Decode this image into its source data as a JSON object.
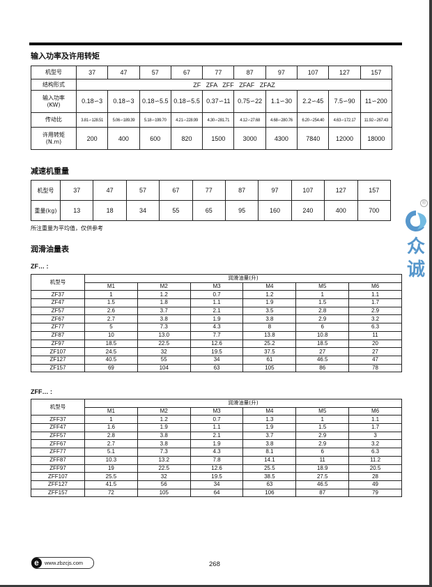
{
  "section1": {
    "title": "输入功率及许用转矩",
    "models_label": "机型号",
    "models": [
      "37",
      "47",
      "57",
      "67",
      "77",
      "87",
      "97",
      "107",
      "127",
      "157"
    ],
    "structure_label": "结构形式",
    "structure_value": "ZF   ZFA   ZFF   ZFAF   ZFAZ",
    "power_label": "输入功率\n(KW)",
    "power": [
      "0.18∽3",
      "0.18∽3",
      "0.18∽5.5",
      "0.18∽5.5",
      "0.37∽11",
      "0.75∽22",
      "1.1∽30",
      "2.2∽45",
      "7.5∽90",
      "11∽200"
    ],
    "ratio_label": "传动比",
    "ratio": [
      "3.81∽128.51",
      "5.06∽189.39",
      "5.18∽199.70",
      "4.21∽228.99",
      "4.30∽281.71",
      "4.12∽27.68",
      "4.68∽280.76",
      "6.20∽254.40",
      "4.63∽172.17",
      "11.92∽267.43"
    ],
    "torque_label": "许用转矩\n(N.m)",
    "torque": [
      "200",
      "400",
      "600",
      "820",
      "1500",
      "3000",
      "4300",
      "7840",
      "12000",
      "18000"
    ]
  },
  "section2": {
    "title": "减速机重量",
    "models_label": "机型号",
    "models": [
      "37",
      "47",
      "57",
      "67",
      "77",
      "87",
      "97",
      "107",
      "127",
      "157"
    ],
    "weight_label": "重量(kg)",
    "weights": [
      "13",
      "18",
      "34",
      "55",
      "65",
      "95",
      "160",
      "240",
      "400",
      "700"
    ],
    "note": "所注重量为平均值，仅供参考"
  },
  "section3": {
    "title": "润滑油量表",
    "tables": [
      {
        "label": "ZF…   :",
        "model_header": "机型号",
        "group_header": "润滑油量(升)",
        "columns": [
          "M1",
          "M2",
          "M3",
          "M4",
          "M5",
          "M6"
        ],
        "rows": [
          [
            "ZF37",
            "1",
            "1.2",
            "0.7",
            "1.2",
            "1",
            "1.1"
          ],
          [
            "ZF47",
            "1.5",
            "1.8",
            "1.1",
            "1.9",
            "1.5",
            "1.7"
          ],
          [
            "ZF57",
            "2.6",
            "3.7",
            "2.1",
            "3.5",
            "2.8",
            "2.9"
          ],
          [
            "ZF67",
            "2.7",
            "3.8",
            "1.9",
            "3.8",
            "2.9",
            "3.2"
          ],
          [
            "ZF77",
            "5",
            "7.3",
            "4.3",
            "8",
            "6",
            "6.3"
          ],
          [
            "ZF87",
            "10",
            "13.0",
            "7.7",
            "13.8",
            "10.8",
            "11"
          ],
          [
            "ZF97",
            "18.5",
            "22.5",
            "12.6",
            "25.2",
            "18.5",
            "20"
          ],
          [
            "ZF107",
            "24.5",
            "32",
            "19.5",
            "37.5",
            "27",
            "27"
          ],
          [
            "ZF127",
            "40.5",
            "55",
            "34",
            "61",
            "46.5",
            "47"
          ],
          [
            "ZF157",
            "69",
            "104",
            "63",
            "105",
            "86",
            "78"
          ]
        ]
      },
      {
        "label": "ZFF…   :",
        "model_header": "机型号",
        "group_header": "润滑油量(升)",
        "columns": [
          "M1",
          "M2",
          "M3",
          "M4",
          "M5",
          "M6"
        ],
        "rows": [
          [
            "ZFF37",
            "1",
            "1.2",
            "0.7",
            "1.3",
            "1",
            "1.1"
          ],
          [
            "ZFF47",
            "1.6",
            "1.9",
            "1.1",
            "1.9",
            "1.5",
            "1.7"
          ],
          [
            "ZFF57",
            "2.8",
            "3.8",
            "2.1",
            "3.7",
            "2.9",
            "3"
          ],
          [
            "ZFF67",
            "2.7",
            "3.8",
            "1.9",
            "3.8",
            "2.9",
            "3.2"
          ],
          [
            "ZFF77",
            "5.1",
            "7.3",
            "4.3",
            "8.1",
            "6",
            "6.3"
          ],
          [
            "ZFF87",
            "10.3",
            "13.2",
            "7.8",
            "14.1",
            "11",
            "11.2"
          ],
          [
            "ZFF97",
            "19",
            "22.5",
            "12.6",
            "25.5",
            "18.9",
            "20.5"
          ],
          [
            "ZFF107",
            "25.5",
            "32",
            "19.5",
            "38.5",
            "27.5",
            "28"
          ],
          [
            "ZFF127",
            "41.5",
            "56",
            "34",
            "63",
            "46.5",
            "49"
          ],
          [
            "ZFF157",
            "72",
            "105",
            "64",
            "106",
            "87",
            "79"
          ]
        ]
      }
    ]
  },
  "watermark": {
    "text": "众诚",
    "mark": "®",
    "color": "#3a86c4"
  },
  "footer": {
    "url": "www.zbzcjs.com",
    "icon": "e-icon",
    "page_number": "268"
  }
}
